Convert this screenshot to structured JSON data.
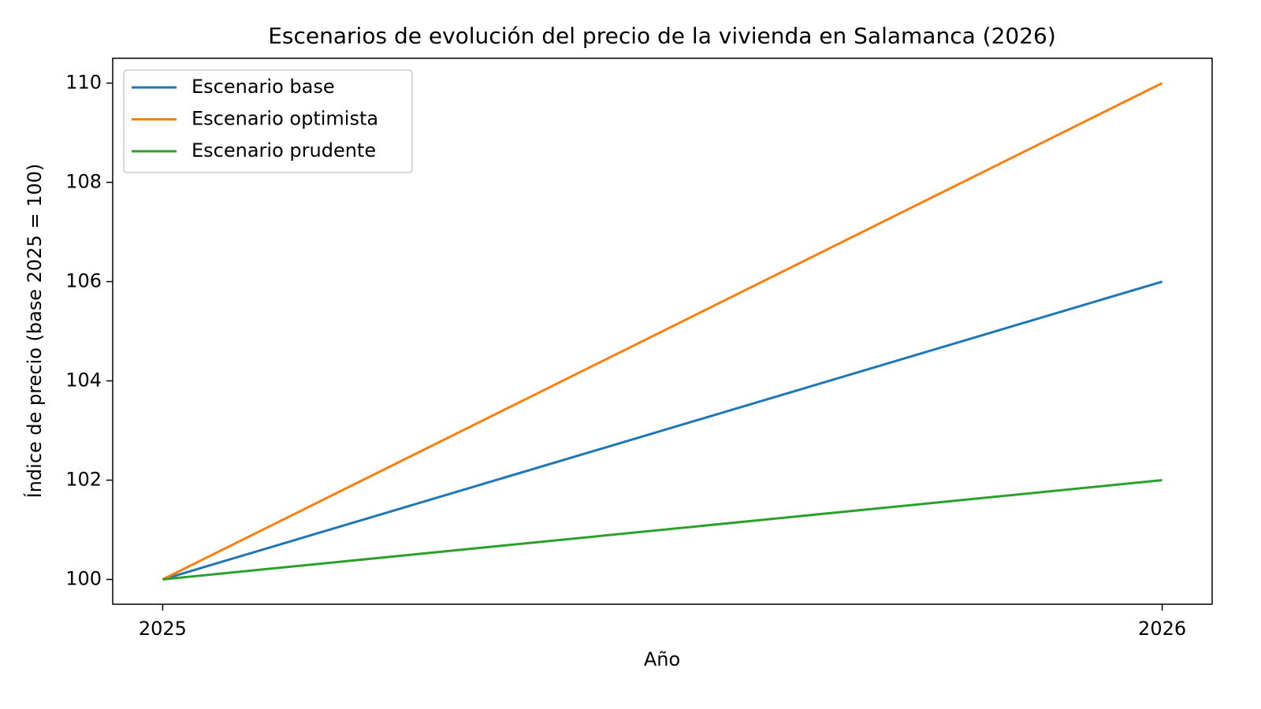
{
  "chart_data": {
    "type": "line",
    "title": "Escenarios de evolución del precio de la vivienda en Salamanca (2026)",
    "x_label": "Año",
    "y_label": "Índice de precio (base 2025 = 100)",
    "x": [
      2025,
      2026
    ],
    "series": [
      {
        "name": "Escenario base",
        "color": "#1f77b4",
        "values": [
          100,
          106
        ]
      },
      {
        "name": "Escenario optimista",
        "color": "#ff7f0e",
        "values": [
          100,
          110
        ]
      },
      {
        "name": "Escenario prudente",
        "color": "#2ca02c",
        "values": [
          100,
          102
        ]
      }
    ],
    "xlim": [
      2024.95,
      2026.05
    ],
    "xticks": [
      2025,
      2026
    ],
    "ylim": [
      99.5,
      110.5
    ],
    "yticks": [
      100,
      102,
      104,
      106,
      108,
      110
    ],
    "grid": false,
    "legend": "upper-left"
  }
}
